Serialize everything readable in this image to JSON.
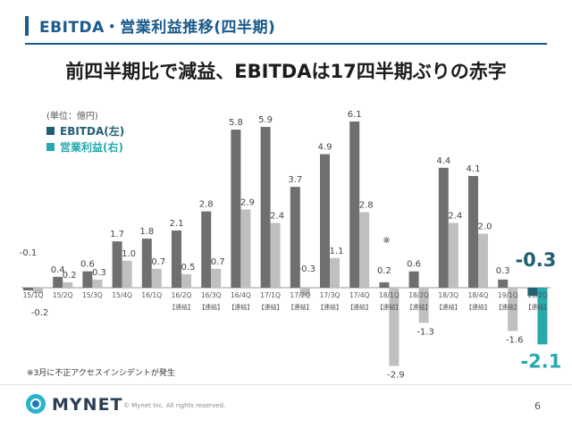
{
  "header": {
    "title": "EBITDA・営業利益推移(四半期)"
  },
  "headline": "前四半期比で減益、EBITDAは17四半期ぶりの赤字",
  "colors": {
    "ebitda": "#6f6f6f",
    "op": "#bfbfbf",
    "ebitda_latest": "#1f5f73",
    "op_latest": "#27a9ad",
    "ebitda_legend": "#1f5f73",
    "op_legend": "#27a9ad",
    "accent": "#1a5a8c"
  },
  "chart_data": {
    "type": "bar",
    "unit_label": "(単位：億円)",
    "categories": [
      "15/1Q",
      "15/2Q",
      "15/3Q",
      "15/4Q",
      "16/1Q",
      "16/2Q",
      "16/3Q",
      "16/4Q",
      "17/1Q",
      "17/2Q",
      "17/3Q",
      "17/4Q",
      "18/1Q",
      "18/2Q",
      "18/3Q",
      "18/4Q",
      "19/1Q",
      "19/2Q"
    ],
    "sublabels": [
      "",
      "",
      "",
      "",
      "",
      "【連結】",
      "【連結】",
      "【連結】",
      "【連結】",
      "【連結】",
      "【連結】",
      "【連結】",
      "【連結】",
      "【連結】",
      "【連結】",
      "【連結】",
      "【連結】",
      "【連結】"
    ],
    "series": [
      {
        "name": "EBITDA(左)",
        "values": [
          -0.1,
          0.4,
          0.6,
          1.7,
          1.8,
          2.1,
          2.8,
          5.8,
          5.9,
          3.7,
          4.9,
          6.1,
          0.2,
          0.6,
          4.4,
          4.1,
          0.3,
          -0.3
        ]
      },
      {
        "name": "営業利益(右)",
        "values": [
          -0.2,
          0.2,
          0.3,
          1.0,
          0.7,
          0.5,
          0.7,
          2.9,
          2.4,
          -0.3,
          1.1,
          2.8,
          -2.9,
          -1.3,
          2.4,
          2.0,
          -1.6,
          -2.1
        ]
      }
    ],
    "annotation": {
      "text": "※",
      "category": "18/1Q"
    }
  },
  "footnote": "※3月に不正アクセスインシデントが発生",
  "footer": {
    "logo": "MYNET",
    "copyright": "© Mynet Inc. All rights reserved.",
    "page": "6"
  }
}
